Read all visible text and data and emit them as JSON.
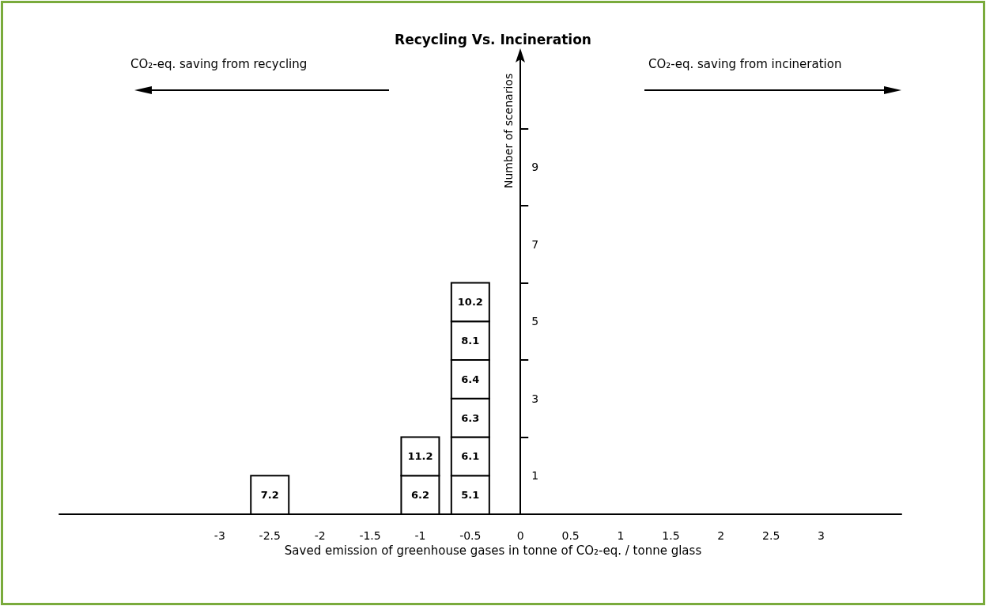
{
  "chart_data": {
    "type": "bar",
    "stacked": true,
    "title": "Recycling Vs. Incineration",
    "xlabel": "Saved emission of greenhouse gases in tonne of CO₂-eq. / tonne glass",
    "ylabel": "Number of scenarios",
    "annotations": [
      "CO₂-eq. saving from recycling",
      "CO₂-eq. saving from incineration",
      "7.2",
      "6.2",
      "5.1",
      "11.2",
      "6.1",
      "6.3",
      "6.4",
      "8.1",
      "10.2"
    ],
    "x": [
      -2.5,
      -1,
      -0.5
    ],
    "series": [
      {
        "color": "#ffffff",
        "values": [
          1,
          1,
          1
        ]
      },
      {
        "color": "#ffffff",
        "values": [
          null,
          1,
          1
        ]
      },
      {
        "color": "#ffffff",
        "values": [
          null,
          null,
          1
        ]
      },
      {
        "color": "#ffffff",
        "values": [
          null,
          null,
          1
        ]
      },
      {
        "color": "#ffffff",
        "values": [
          null,
          null,
          1
        ]
      },
      {
        "color": "#ffffff",
        "values": [
          null,
          null,
          1
        ]
      }
    ],
    "xlim": [
      -4.6,
      3.8
    ],
    "xticks": [
      -3,
      -2.5,
      -2,
      -1.5,
      -1,
      -0.5,
      0,
      0.5,
      1,
      1.5,
      2,
      2.5,
      3
    ],
    "grid": false,
    "ylim": [
      0,
      12
    ],
    "yticks": [
      1,
      {
        "value": 2,
        "label": null
      },
      3,
      {
        "value": 4,
        "label": null
      },
      5,
      {
        "value": 6,
        "label": null
      },
      7,
      {
        "value": 8,
        "label": null
      },
      9,
      {
        "value": 10,
        "label": null
      }
    ]
  }
}
